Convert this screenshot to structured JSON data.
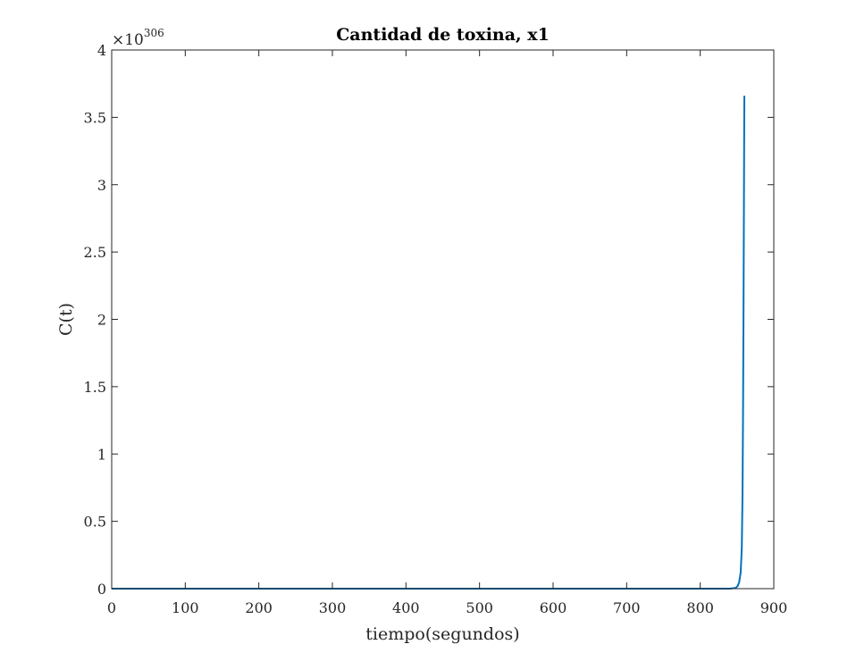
{
  "chart_data": {
    "type": "line",
    "title": "Cantidad de toxina, x1",
    "xlabel": "tiempo(segundos)",
    "ylabel": "C(t)",
    "xlim": [
      0,
      900
    ],
    "ylim": [
      0,
      4
    ],
    "y_exponent_label": {
      "base": "×10",
      "power": "306"
    },
    "xticks": [
      0,
      100,
      200,
      300,
      400,
      500,
      600,
      700,
      800,
      900
    ],
    "xtick_labels": [
      "0",
      "100",
      "200",
      "300",
      "400",
      "500",
      "600",
      "700",
      "800",
      "900"
    ],
    "yticks": [
      0,
      0.5,
      1,
      1.5,
      2,
      2.5,
      3,
      3.5,
      4
    ],
    "ytick_labels": [
      "0",
      "0.5",
      "1",
      "1.5",
      "2",
      "2.5",
      "3",
      "3.5",
      "4"
    ],
    "grid": false,
    "series": [
      {
        "color": "#0072BD",
        "x": [
          0,
          100,
          200,
          300,
          400,
          500,
          600,
          700,
          800,
          840,
          848,
          851,
          853,
          855,
          856.5,
          857.5,
          858.2,
          858.8,
          859.3,
          859.7,
          860
        ],
        "y": [
          0,
          0,
          0,
          0,
          0,
          0,
          0,
          0,
          0,
          0,
          0.005,
          0.02,
          0.05,
          0.12,
          0.3,
          0.7,
          1.3,
          2.0,
          2.7,
          3.3,
          3.66
        ]
      }
    ]
  }
}
